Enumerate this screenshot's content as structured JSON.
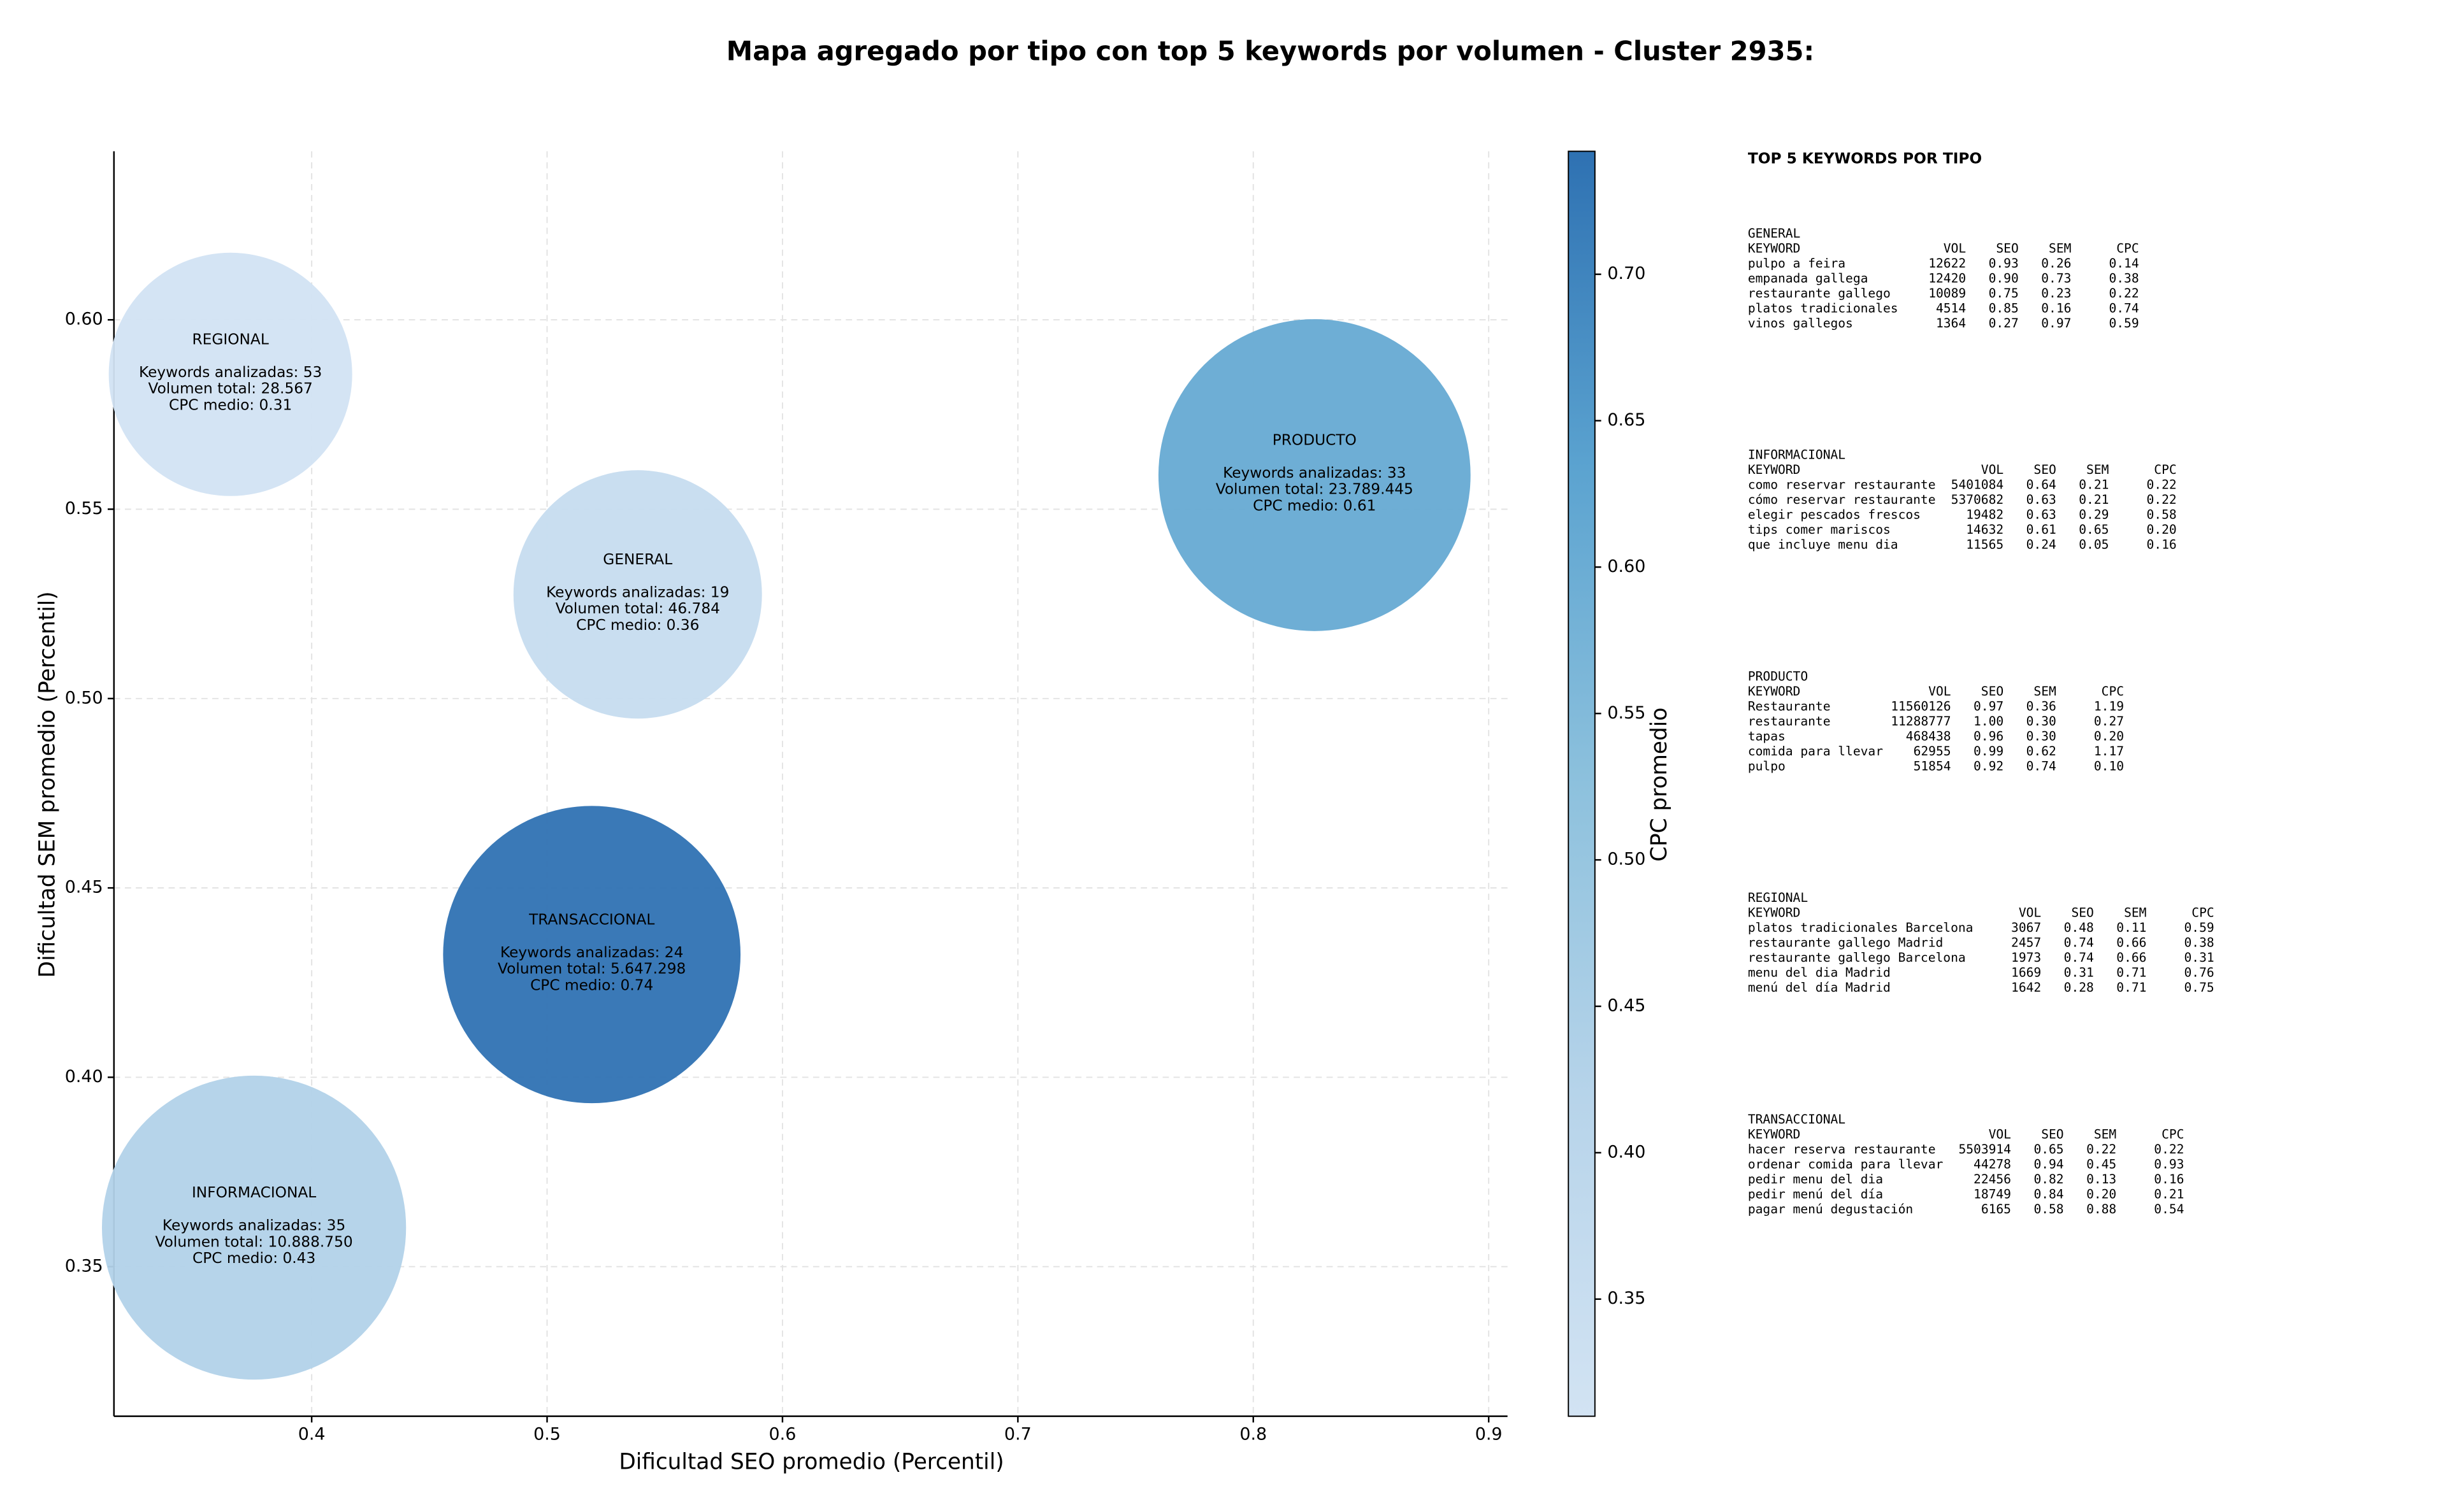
{
  "chart_data": {
    "type": "scatter",
    "title": "Mapa agregado por tipo con top 5 keywords por volumen - Cluster 2935:",
    "xlabel": "Dificultad SEO promedio (Percentil)",
    "ylabel": "Dificultad SEM promedio (Percentil)",
    "xlim": [
      0.316,
      0.908
    ],
    "ylim": [
      0.3105,
      0.6445
    ],
    "xticks": [
      0.4,
      0.5,
      0.6,
      0.7,
      0.8,
      0.9
    ],
    "yticks": [
      0.35,
      {
        "value": 0.4,
        "label": "0.40"
      },
      0.45,
      {
        "value": 0.5,
        "label": "0.50"
      },
      0.55,
      {
        "value": 0.6,
        "label": "0.60"
      }
    ],
    "grid": true,
    "x": [
      0.3655,
      0.5385,
      0.826,
      0.519,
      0.3755
    ],
    "y": [
      0.5856,
      0.5275,
      0.559,
      0.4324,
      0.3603
    ],
    "cpc": [
      0.31,
      0.36,
      0.61,
      0.74,
      0.43
    ],
    "volume": [
      28567,
      46784,
      23789445,
      5647298,
      10888750
    ],
    "labels": [
      [
        "REGIONAL",
        "Keywords analizadas: 53",
        "Volumen total: 28.567",
        "CPC medio: 0.31"
      ],
      [
        "GENERAL",
        "Keywords analizadas: 19",
        "Volumen total: 46.784",
        "CPC medio: 0.36"
      ],
      [
        "PRODUCTO",
        "Keywords analizadas: 33",
        "Volumen total: 23.789.445",
        "CPC medio: 0.61"
      ],
      [
        "TRANSACCIONAL",
        "Keywords analizadas: 24",
        "Volumen total: 5.647.298",
        "CPC medio: 0.74"
      ],
      [
        "INFORMACIONAL",
        "Keywords analizadas: 35",
        "Volumen total: 10.888.750",
        "CPC medio: 0.43"
      ]
    ],
    "colorbar": {
      "label": "CPC promedio",
      "lim": [
        0.31,
        0.742
      ],
      "ticks": [
        0.35,
        {
          "value": 0.4,
          "label": "0.40"
        },
        0.45,
        {
          "value": 0.5,
          "label": "0.50"
        },
        0.55,
        {
          "value": 0.6,
          "label": "0.60"
        },
        0.65,
        {
          "value": 0.7,
          "label": "0.70"
        }
      ]
    }
  },
  "side_panel": {
    "title": "TOP 5 KEYWORDS POR TIPO",
    "sections": [
      {
        "name": "GENERAL",
        "header": [
          "KEYWORD",
          "VOL",
          "SEO",
          "SEM",
          "CPC"
        ],
        "rows": [
          [
            "pulpo a feira",
            "12622",
            "0.93",
            "0.26",
            "0.14"
          ],
          [
            "empanada gallega",
            "12420",
            "0.90",
            "0.73",
            "0.38"
          ],
          [
            "restaurante gallego",
            "10089",
            "0.75",
            "0.23",
            "0.22"
          ],
          [
            "platos tradicionales",
            "4514",
            "0.85",
            "0.16",
            "0.74"
          ],
          [
            "vinos gallegos",
            "1364",
            "0.27",
            "0.97",
            "0.59"
          ]
        ]
      },
      {
        "name": "INFORMACIONAL",
        "header": [
          "KEYWORD",
          "VOL",
          "SEO",
          "SEM",
          "CPC"
        ],
        "rows": [
          [
            "como reservar restaurante",
            "5401084",
            "0.64",
            "0.21",
            "0.22"
          ],
          [
            "cómo reservar restaurante",
            "5370682",
            "0.63",
            "0.21",
            "0.22"
          ],
          [
            "elegir pescados frescos",
            "19482",
            "0.63",
            "0.29",
            "0.58"
          ],
          [
            "tips comer mariscos",
            "14632",
            "0.61",
            "0.65",
            "0.20"
          ],
          [
            "que incluye menu dia",
            "11565",
            "0.24",
            "0.05",
            "0.16"
          ]
        ]
      },
      {
        "name": "PRODUCTO",
        "header": [
          "KEYWORD",
          "VOL",
          "SEO",
          "SEM",
          "CPC"
        ],
        "rows": [
          [
            "Restaurante",
            "11560126",
            "0.97",
            "0.36",
            "1.19"
          ],
          [
            "restaurante",
            "11288777",
            "1.00",
            "0.30",
            "0.27"
          ],
          [
            "tapas",
            "468438",
            "0.96",
            "0.30",
            "0.20"
          ],
          [
            "comida para llevar",
            "62955",
            "0.99",
            "0.62",
            "1.17"
          ],
          [
            "pulpo",
            "51854",
            "0.92",
            "0.74",
            "0.10"
          ]
        ]
      },
      {
        "name": "REGIONAL",
        "header": [
          "KEYWORD",
          "VOL",
          "SEO",
          "SEM",
          "CPC"
        ],
        "rows": [
          [
            "platos tradicionales Barcelona",
            "3067",
            "0.48",
            "0.11",
            "0.59"
          ],
          [
            "restaurante gallego Madrid",
            "2457",
            "0.74",
            "0.66",
            "0.38"
          ],
          [
            "restaurante gallego Barcelona",
            "1973",
            "0.74",
            "0.66",
            "0.31"
          ],
          [
            "menu del dia Madrid",
            "1669",
            "0.31",
            "0.71",
            "0.76"
          ],
          [
            "menú del día Madrid",
            "1642",
            "0.28",
            "0.71",
            "0.75"
          ]
        ]
      },
      {
        "name": "TRANSACCIONAL",
        "header": [
          "KEYWORD",
          "VOL",
          "SEO",
          "SEM",
          "CPC"
        ],
        "rows": [
          [
            "hacer reserva restaurante",
            "5503914",
            "0.65",
            "0.22",
            "0.22"
          ],
          [
            "ordenar comida para llevar",
            "44278",
            "0.94",
            "0.45",
            "0.93"
          ],
          [
            "pedir menu del dia",
            "22456",
            "0.82",
            "0.13",
            "0.16"
          ],
          [
            "pedir menú del día",
            "18749",
            "0.84",
            "0.20",
            "0.21"
          ],
          [
            "pagar menú degustación",
            "6165",
            "0.58",
            "0.88",
            "0.54"
          ]
        ]
      }
    ]
  }
}
